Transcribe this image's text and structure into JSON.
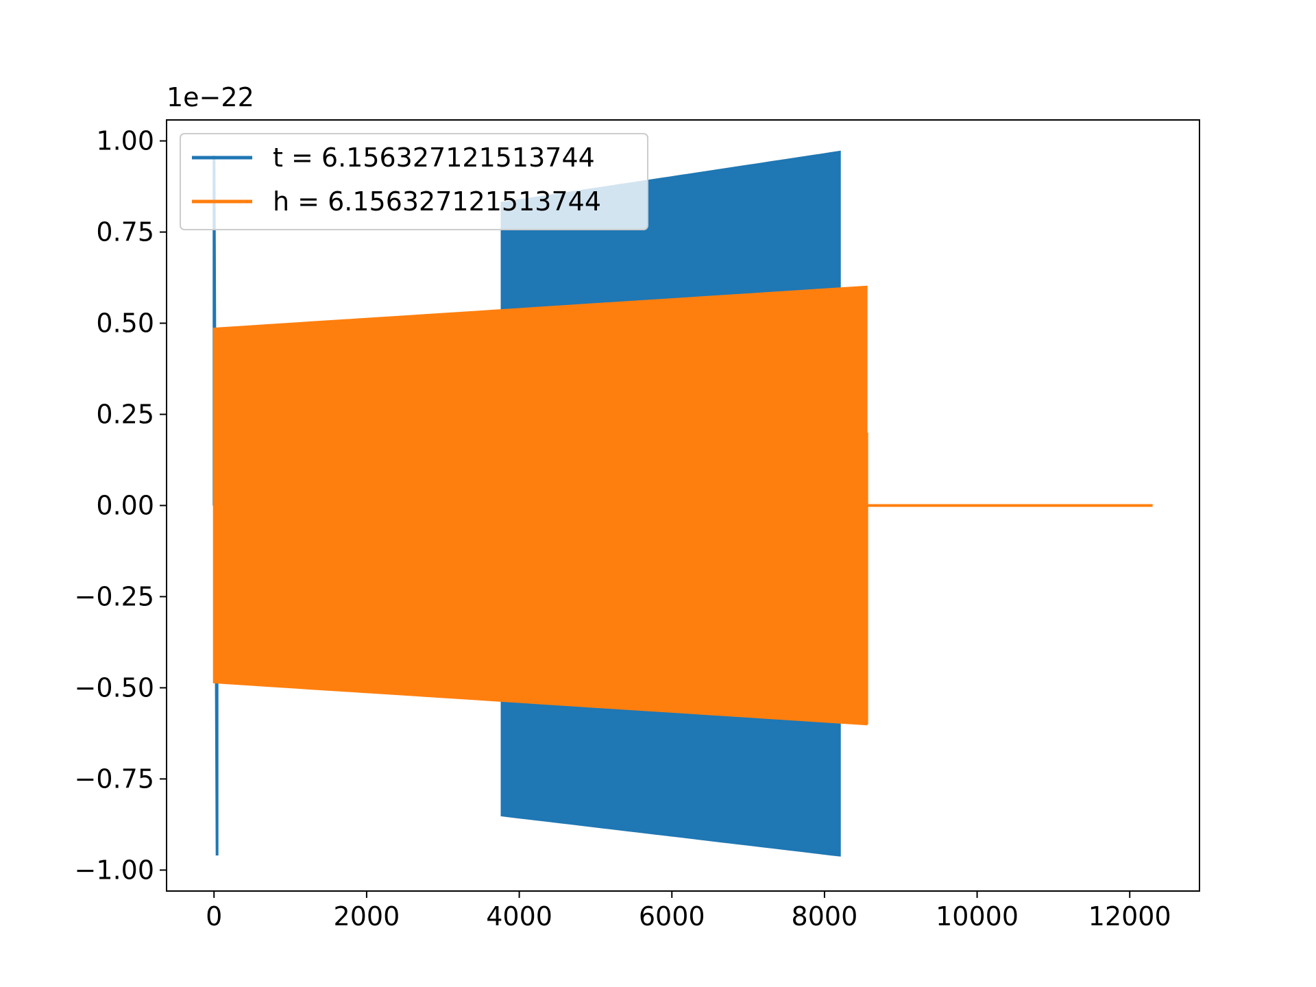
{
  "chart_data": {
    "type": "line",
    "title": "",
    "xlabel": "",
    "ylabel": "",
    "y_offset_label": "1e−22",
    "y_scale": 1e-22,
    "xlim": [
      -622.0,
      12914.0
    ],
    "ylim": [
      -1.0575,
      1.0575
    ],
    "x_ticks": [
      0,
      2000,
      4000,
      6000,
      8000,
      10000,
      12000
    ],
    "x_tick_labels": [
      "0",
      "2000",
      "4000",
      "6000",
      "8000",
      "10000",
      "12000"
    ],
    "y_ticks": [
      -1.0,
      -0.75,
      -0.5,
      -0.25,
      0.0,
      0.25,
      0.5,
      0.75,
      1.0
    ],
    "y_tick_labels": [
      "−1.00",
      "−0.75",
      "−0.50",
      "−0.25",
      "0.00",
      "0.25",
      "0.50",
      "0.75",
      "1.00"
    ],
    "grid": false,
    "legend_position": "top-left",
    "series": [
      {
        "name": "t = 6.156327121513744",
        "color": "#1f77b4",
        "spike": {
          "x_start": 0,
          "x_end": 40,
          "min": -0.96,
          "max": 0.96
        },
        "band": {
          "x_start": 3770,
          "x_end": 8200,
          "upper_start": 0.83,
          "upper_end": 0.97,
          "lower_start": -0.85,
          "lower_end": -0.96
        }
      },
      {
        "name": "h = 6.156327121513744",
        "color": "#ff7f0e",
        "band": {
          "x_start": 0,
          "x_end": 8550,
          "upper_start": 0.485,
          "upper_end": 0.6,
          "lower_start": -0.485,
          "lower_end": -0.6
        },
        "tail": {
          "x_start": 8550,
          "x_end": 12300,
          "value": 0.0
        }
      }
    ]
  }
}
